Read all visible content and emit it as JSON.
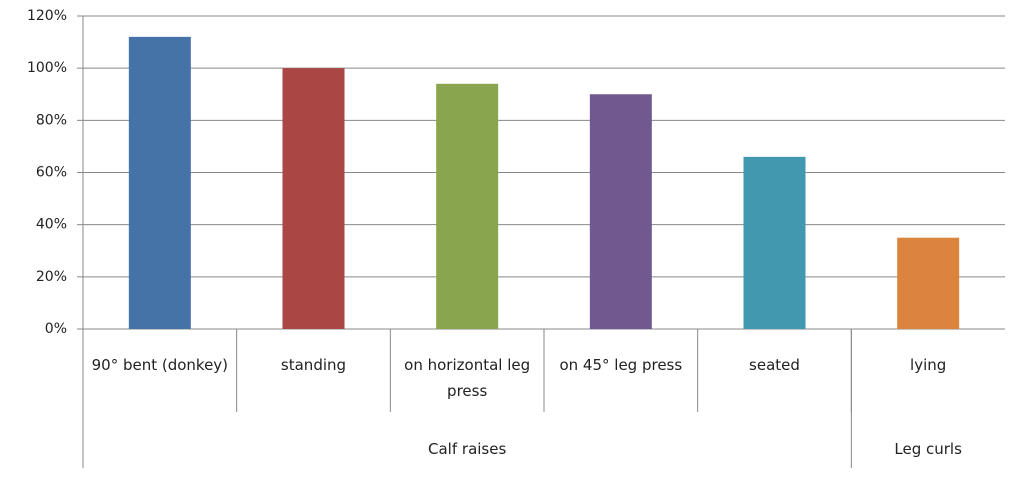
{
  "chart_data": {
    "type": "bar",
    "categories": [
      "90° bent (donkey)",
      "standing",
      "on horizontal leg press",
      "on 45° leg press",
      "seated",
      "lying"
    ],
    "groups": [
      {
        "name": "Calf raises",
        "size": 5
      },
      {
        "name": "Leg curls",
        "size": 1
      }
    ],
    "values": [
      112,
      100,
      94,
      90,
      66,
      35
    ],
    "colors": [
      "#4572a7",
      "#aa4643",
      "#89a54e",
      "#71588f",
      "#4198af",
      "#db843d"
    ],
    "ylim": [
      0,
      120
    ],
    "yticks": [
      {
        "value": 0,
        "label": "0%"
      },
      {
        "value": 20,
        "label": "20%"
      },
      {
        "value": 40,
        "label": "40%"
      },
      {
        "value": 60,
        "label": "60%"
      },
      {
        "value": 80,
        "label": "80%"
      },
      {
        "value": 100,
        "label": "100%"
      },
      {
        "value": 120,
        "label": "120%"
      }
    ],
    "grid": true
  }
}
